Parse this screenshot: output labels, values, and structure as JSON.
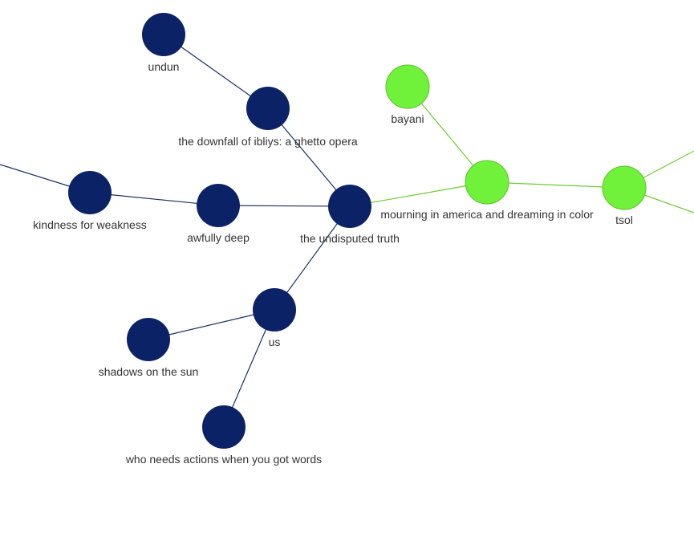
{
  "graph": {
    "colors": {
      "group_dark": "#0c2266",
      "group_green": "#70f23a",
      "edge_dark": "#1c2f66",
      "edge_green": "#6ccf2c",
      "label": "#333333"
    },
    "nodes": [
      {
        "id": "undun",
        "label": "undun",
        "group": "dark"
      },
      {
        "id": "downfall",
        "label": "the downfall of ibliys: a ghetto opera",
        "group": "dark"
      },
      {
        "id": "kindness",
        "label": "kindness for weakness",
        "group": "dark"
      },
      {
        "id": "awfully",
        "label": "awfully deep",
        "group": "dark"
      },
      {
        "id": "truth",
        "label": "the undisputed truth",
        "group": "dark"
      },
      {
        "id": "us",
        "label": "us",
        "group": "dark"
      },
      {
        "id": "shadows",
        "label": "shadows on the sun",
        "group": "dark"
      },
      {
        "id": "words",
        "label": "who needs actions when you got words",
        "group": "dark"
      },
      {
        "id": "bayani",
        "label": "bayani",
        "group": "green"
      },
      {
        "id": "mourning",
        "label": "mourning in america and dreaming in color",
        "group": "green"
      },
      {
        "id": "tsol",
        "label": "tsol",
        "group": "green"
      }
    ],
    "edges": [
      {
        "from": "undun",
        "to": "downfall",
        "group": "dark"
      },
      {
        "from": "downfall",
        "to": "truth",
        "group": "dark"
      },
      {
        "from": "kindness",
        "to": "awfully",
        "group": "dark"
      },
      {
        "from": "awfully",
        "to": "truth",
        "group": "dark"
      },
      {
        "from": "truth",
        "to": "us",
        "group": "dark"
      },
      {
        "from": "us",
        "to": "shadows",
        "group": "dark"
      },
      {
        "from": "us",
        "to": "words",
        "group": "dark"
      },
      {
        "from": "truth",
        "to": "mourning",
        "group": "green"
      },
      {
        "from": "bayani",
        "to": "mourning",
        "group": "green"
      },
      {
        "from": "mourning",
        "to": "tsol",
        "group": "green"
      }
    ]
  }
}
